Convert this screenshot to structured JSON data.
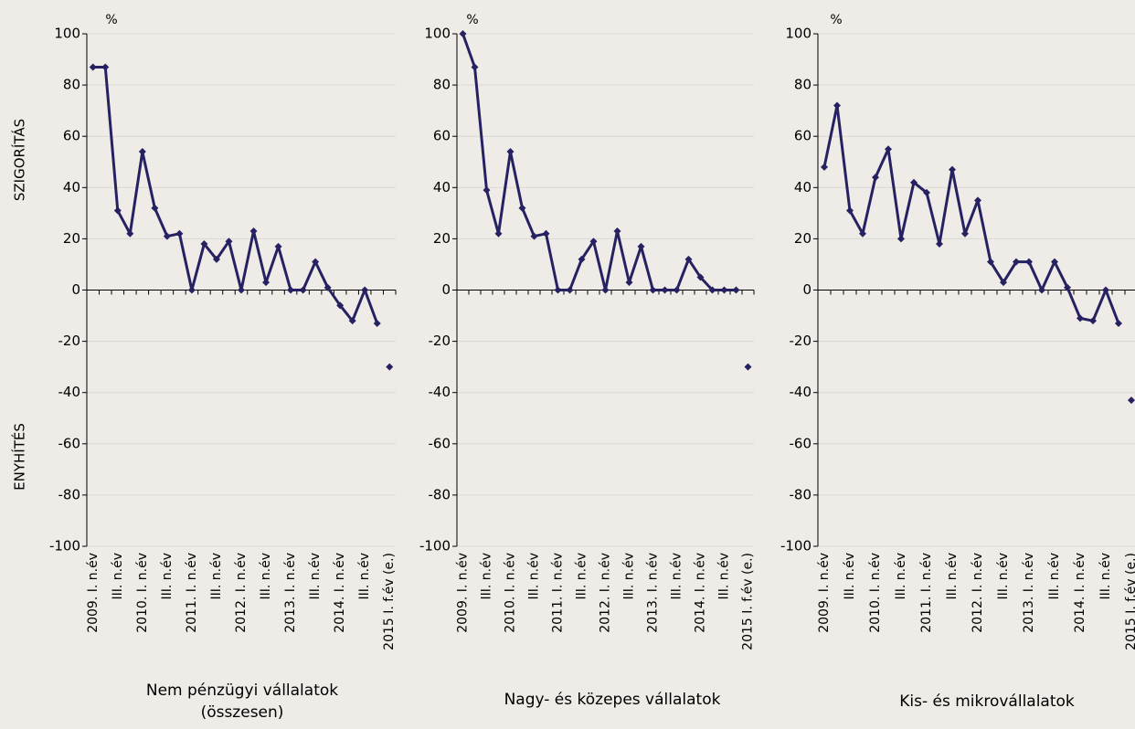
{
  "chart_data": [
    {
      "type": "line",
      "title": "Nem pénzügyi vállalatok (összesen)",
      "unit": "%",
      "y_labels": [
        "SZIGORÍTÁS",
        "ENYHÍTÉS"
      ],
      "categories": [
        "2009. I. n.év",
        null,
        "III. n.év",
        null,
        "2010. I. n.év",
        null,
        "III. n.év",
        null,
        "2011. I. n.év",
        null,
        "III. n.év",
        null,
        "2012. I. n.év",
        null,
        "III. n.év",
        null,
        "2013. I. n.év",
        null,
        "III. n.év",
        null,
        "2014. I. n.év",
        null,
        "III. n.év",
        null,
        "2015 I. f.év (e.)"
      ],
      "series": [
        {
          "style": "line",
          "color": "#262262",
          "values": [
            87,
            87,
            31,
            22,
            54,
            32,
            21,
            22,
            0,
            18,
            12,
            19,
            0,
            23,
            3,
            17,
            0,
            0,
            11,
            1,
            -6,
            -12,
            0,
            -13,
            null
          ]
        },
        {
          "style": "marker",
          "color": "#262262",
          "values": [
            null,
            null,
            null,
            null,
            null,
            null,
            null,
            null,
            null,
            null,
            null,
            null,
            null,
            null,
            null,
            null,
            null,
            null,
            null,
            null,
            null,
            null,
            null,
            null,
            -30
          ]
        }
      ],
      "ylim": [
        -100,
        100
      ],
      "yticks": [
        -100,
        -80,
        -60,
        -40,
        -20,
        0,
        20,
        40,
        60,
        80,
        100
      ],
      "grid": true
    },
    {
      "type": "line",
      "title": "Nagy- és közepes vállalatok",
      "unit": "%",
      "categories": [
        "2009. I. n.év",
        null,
        "III. n.év",
        null,
        "2010. I. n.év",
        null,
        "III. n.év",
        null,
        "2011. I. n.év",
        null,
        "III. n.év",
        null,
        "2012. I. n.év",
        null,
        "III. n.év",
        null,
        "2013. I. n.év",
        null,
        "III. n.év",
        null,
        "2014. I. n.év",
        null,
        "III. n.év",
        null,
        "2015 I. f.év (e.)"
      ],
      "series": [
        {
          "style": "line",
          "color": "#262262",
          "values": [
            100,
            87,
            39,
            22,
            54,
            32,
            21,
            22,
            0,
            0,
            12,
            19,
            0,
            23,
            3,
            17,
            0,
            0,
            0,
            12,
            5,
            0,
            0,
            0,
            null
          ]
        },
        {
          "style": "marker",
          "color": "#262262",
          "values": [
            null,
            null,
            null,
            null,
            null,
            null,
            null,
            null,
            null,
            null,
            null,
            null,
            null,
            null,
            null,
            null,
            null,
            null,
            null,
            null,
            null,
            null,
            null,
            null,
            -30
          ]
        }
      ],
      "ylim": [
        -100,
        100
      ],
      "yticks": [
        -100,
        -80,
        -60,
        -40,
        -20,
        0,
        20,
        40,
        60,
        80,
        100
      ],
      "grid": true
    },
    {
      "type": "line",
      "title": "Kis- és mikrovállalatok",
      "unit": "%",
      "categories": [
        "2009. I. n.év",
        null,
        "III. n.év",
        null,
        "2010. I. n.év",
        null,
        "III. n.év",
        null,
        "2011. I. n.év",
        null,
        "III. n.év",
        null,
        "2012. I. n.év",
        null,
        "III. n.év",
        null,
        "2013. I. n.év",
        null,
        "III. n.év",
        null,
        "2014. I. n.év",
        null,
        "III. n.év",
        null,
        "2015 I. f.év (e.)"
      ],
      "series": [
        {
          "style": "line",
          "color": "#262262",
          "values": [
            48,
            72,
            31,
            22,
            44,
            55,
            20,
            42,
            38,
            18,
            47,
            22,
            35,
            11,
            3,
            11,
            11,
            0,
            11,
            1,
            -11,
            -12,
            0,
            -13,
            null
          ]
        },
        {
          "style": "marker",
          "color": "#262262",
          "values": [
            null,
            null,
            null,
            null,
            null,
            null,
            null,
            null,
            null,
            null,
            null,
            null,
            null,
            null,
            null,
            null,
            null,
            null,
            null,
            null,
            null,
            null,
            null,
            null,
            -43
          ]
        }
      ],
      "ylim": [
        -100,
        100
      ],
      "yticks": [
        -100,
        -80,
        -60,
        -40,
        -20,
        0,
        20,
        40,
        60,
        80,
        100
      ],
      "grid": true
    }
  ]
}
